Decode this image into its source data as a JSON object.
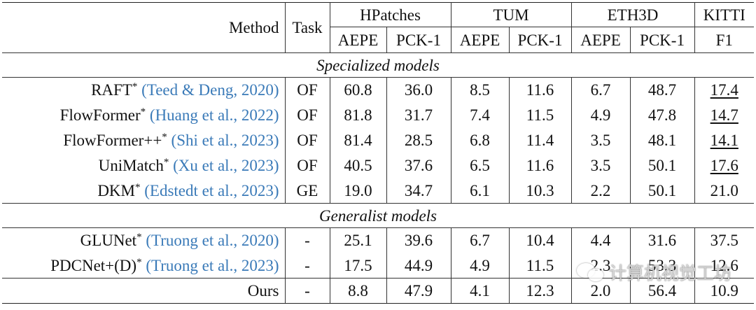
{
  "header": {
    "method": "Method",
    "task": "Task",
    "groups": [
      "HPatches",
      "TUM",
      "ETH3D",
      "KITTI"
    ],
    "metrics": [
      "AEPE",
      "PCK-1",
      "AEPE",
      "PCK-1",
      "AEPE",
      "PCK-1",
      "F1"
    ]
  },
  "sections": [
    {
      "title": "Specialized models",
      "rows": [
        {
          "name": "RAFT",
          "mark": "*",
          "cite": "(Teed & Deng, 2020)",
          "task": "OF",
          "values": [
            "60.8",
            "36.0",
            "8.5",
            "11.6",
            "6.7",
            "48.7",
            "17.4"
          ]
        },
        {
          "name": "FlowFormer",
          "mark": "*",
          "cite": "(Huang et al., 2022)",
          "task": "OF",
          "values": [
            "81.8",
            "31.7",
            "7.4",
            "11.5",
            "4.9",
            "47.8",
            "14.7"
          ]
        },
        {
          "name": "FlowFormer++",
          "mark": "*",
          "cite": "(Shi et al., 2023)",
          "task": "OF",
          "values": [
            "81.4",
            "28.5",
            "6.8",
            "11.4",
            "3.5",
            "48.1",
            "14.1"
          ]
        },
        {
          "name": "UniMatch",
          "mark": "*",
          "cite": "(Xu et al., 2023)",
          "task": "OF",
          "values": [
            "40.5",
            "37.6",
            "6.5",
            "11.6",
            "3.5",
            "50.1",
            "17.6"
          ]
        },
        {
          "name": "DKM",
          "mark": "*",
          "cite": "(Edstedt et al., 2023)",
          "task": "GE",
          "values": [
            "19.0",
            "34.7",
            "6.1",
            "10.3",
            "2.2",
            "50.1",
            "21.0"
          ]
        }
      ]
    },
    {
      "title": "Generalist models",
      "rows": [
        {
          "name": "GLUNet",
          "mark": "*",
          "cite": "(Truong et al., 2020)",
          "task": "-",
          "values": [
            "25.1",
            "39.6",
            "6.7",
            "10.4",
            "4.4",
            "31.6",
            "37.5"
          ]
        },
        {
          "name": "PDCNet+(D)",
          "mark": "*",
          "cite": "(Truong et al., 2023)",
          "task": "-",
          "values": [
            "17.5",
            "44.9",
            "4.9",
            "11.5",
            "2.3",
            "53.3",
            "12.6"
          ]
        }
      ]
    }
  ],
  "ours": {
    "name": "Ours",
    "task": "-",
    "values": [
      "8.8",
      "47.9",
      "4.1",
      "12.3",
      "2.0",
      "56.4",
      "10.9"
    ]
  },
  "underlined": [
    [
      0,
      0,
      6
    ],
    [
      0,
      1,
      6
    ],
    [
      0,
      2,
      6
    ],
    [
      0,
      3,
      6
    ]
  ],
  "watermark": "计算机视觉工坊"
}
